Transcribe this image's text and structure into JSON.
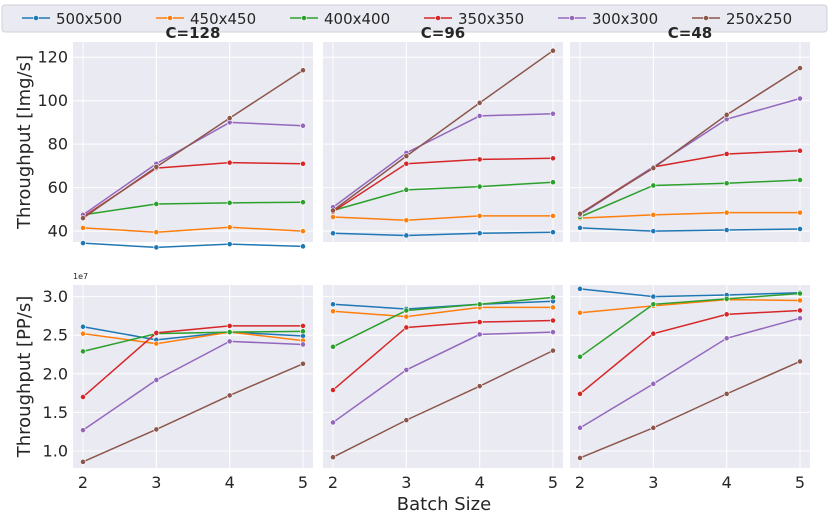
{
  "chart_data": {
    "type": "line",
    "legend": {
      "placement": "top",
      "entries": [
        "500x500",
        "450x450",
        "400x400",
        "350x350",
        "300x300",
        "250x250"
      ]
    },
    "colors": [
      "#1f77b4",
      "#ff7f0e",
      "#2ca02c",
      "#d62728",
      "#9467bd",
      "#8c564b"
    ],
    "x": [
      2,
      3,
      4,
      5
    ],
    "xlabel": "Batch Size",
    "rows": [
      {
        "ylabel": "Throughput [Img/s]",
        "ylim": [
          35,
          127
        ],
        "yticks": [
          40,
          60,
          80,
          100,
          120
        ],
        "tick_labels": [
          "40",
          "60",
          "80",
          "100",
          "120"
        ],
        "exponent": "",
        "panels": [
          {
            "title": "C=128",
            "series": [
              {
                "name": "500x500",
                "values": [
                  34.5,
                  32.5,
                  34.0,
                  33.0
                ]
              },
              {
                "name": "450x450",
                "values": [
                  41.5,
                  39.5,
                  41.8,
                  40.0
                ]
              },
              {
                "name": "400x400",
                "values": [
                  47.5,
                  52.5,
                  53.0,
                  53.3
                ]
              },
              {
                "name": "350x350",
                "values": [
                  46.5,
                  69.0,
                  71.5,
                  71.0
                ]
              },
              {
                "name": "300x300",
                "values": [
                  47.5,
                  71.0,
                  90.0,
                  88.5
                ]
              },
              {
                "name": "250x250",
                "values": [
                  46.0,
                  69.5,
                  92.0,
                  114.0
                ]
              }
            ]
          },
          {
            "title": "C=96",
            "series": [
              {
                "name": "500x500",
                "values": [
                  39.0,
                  38.0,
                  39.0,
                  39.5
                ]
              },
              {
                "name": "450x450",
                "values": [
                  46.5,
                  45.0,
                  47.0,
                  47.0
                ]
              },
              {
                "name": "400x400",
                "values": [
                  49.5,
                  59.0,
                  60.5,
                  62.5
                ]
              },
              {
                "name": "350x350",
                "values": [
                  49.0,
                  71.0,
                  73.0,
                  73.5
                ]
              },
              {
                "name": "300x300",
                "values": [
                  51.0,
                  76.0,
                  93.0,
                  94.0
                ]
              },
              {
                "name": "250x250",
                "values": [
                  49.5,
                  74.5,
                  99.0,
                  123.0
                ]
              }
            ]
          },
          {
            "title": "C=48",
            "series": [
              {
                "name": "500x500",
                "values": [
                  41.5,
                  40.0,
                  40.5,
                  41.0
                ]
              },
              {
                "name": "450x450",
                "values": [
                  46.0,
                  47.5,
                  48.5,
                  48.5
                ]
              },
              {
                "name": "400x400",
                "values": [
                  46.5,
                  61.0,
                  62.0,
                  63.5
                ]
              },
              {
                "name": "350x350",
                "values": [
                  48.0,
                  69.5,
                  75.5,
                  77.0
                ]
              },
              {
                "name": "300x300",
                "values": [
                  47.5,
                  69.5,
                  91.5,
                  101.0
                ]
              },
              {
                "name": "250x250",
                "values": [
                  48.0,
                  69.0,
                  93.5,
                  115.0
                ]
              }
            ]
          }
        ]
      },
      {
        "ylabel": "Throughput [PP/s]",
        "ylim": [
          0.78,
          3.15
        ],
        "yticks": [
          1.0,
          1.5,
          2.0,
          2.5,
          3.0
        ],
        "tick_labels": [
          "1.0",
          "1.5",
          "2.0",
          "2.5",
          "3.0"
        ],
        "exponent": "1e7",
        "panels": [
          {
            "title": "",
            "series": [
              {
                "name": "500x500",
                "values": [
                  2.61,
                  2.44,
                  2.54,
                  2.49
                ]
              },
              {
                "name": "450x450",
                "values": [
                  2.52,
                  2.39,
                  2.54,
                  2.43
                ]
              },
              {
                "name": "400x400",
                "values": [
                  2.29,
                  2.52,
                  2.54,
                  2.55
                ]
              },
              {
                "name": "350x350",
                "values": [
                  1.7,
                  2.53,
                  2.62,
                  2.62
                ]
              },
              {
                "name": "300x300",
                "values": [
                  1.27,
                  1.92,
                  2.42,
                  2.38
                ]
              },
              {
                "name": "250x250",
                "values": [
                  0.86,
                  1.28,
                  1.72,
                  2.13
                ]
              }
            ]
          },
          {
            "title": "",
            "series": [
              {
                "name": "500x500",
                "values": [
                  2.9,
                  2.84,
                  2.9,
                  2.94
                ]
              },
              {
                "name": "450x450",
                "values": [
                  2.81,
                  2.74,
                  2.86,
                  2.86
                ]
              },
              {
                "name": "400x400",
                "values": [
                  2.35,
                  2.82,
                  2.9,
                  2.99
                ]
              },
              {
                "name": "350x350",
                "values": [
                  1.79,
                  2.6,
                  2.67,
                  2.69
                ]
              },
              {
                "name": "300x300",
                "values": [
                  1.37,
                  2.05,
                  2.51,
                  2.54
                ]
              },
              {
                "name": "250x250",
                "values": [
                  0.92,
                  1.4,
                  1.84,
                  2.3
                ]
              }
            ]
          },
          {
            "title": "",
            "series": [
              {
                "name": "500x500",
                "values": [
                  3.1,
                  3.0,
                  3.02,
                  3.05
                ]
              },
              {
                "name": "450x450",
                "values": [
                  2.79,
                  2.88,
                  2.96,
                  2.95
                ]
              },
              {
                "name": "400x400",
                "values": [
                  2.22,
                  2.9,
                  2.97,
                  3.04
                ]
              },
              {
                "name": "350x350",
                "values": [
                  1.74,
                  2.52,
                  2.77,
                  2.82
                ]
              },
              {
                "name": "300x300",
                "values": [
                  1.3,
                  1.87,
                  2.46,
                  2.72
                ]
              },
              {
                "name": "250x250",
                "values": [
                  0.91,
                  1.3,
                  1.74,
                  2.16
                ]
              }
            ]
          }
        ]
      }
    ]
  }
}
